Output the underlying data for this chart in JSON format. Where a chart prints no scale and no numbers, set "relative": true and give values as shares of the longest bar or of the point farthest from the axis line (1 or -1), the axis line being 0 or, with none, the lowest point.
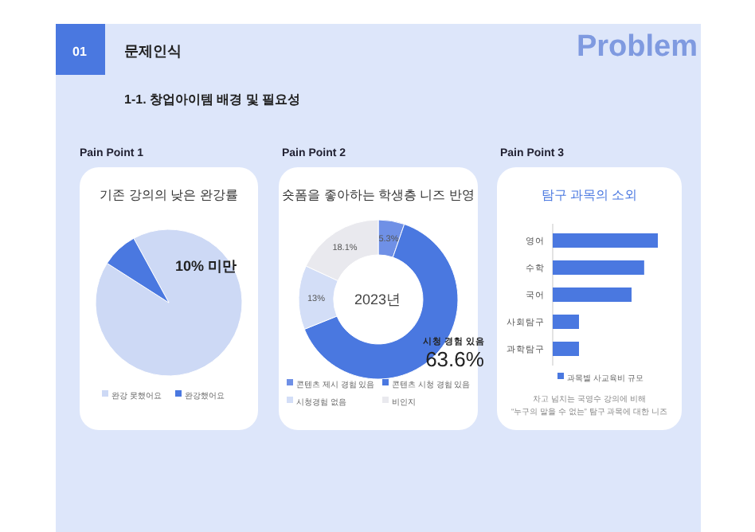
{
  "chart_data": [
    {
      "type": "pie",
      "title": "기존 강의의 낮은 완강률",
      "categories": [
        "완강 못했어요",
        "완강했어요"
      ],
      "values": [
        92,
        8
      ],
      "colors": [
        "#cdd9f5",
        "#4a78e0"
      ],
      "legend": "bottom",
      "annotations": [
        "01",
        "문제인식",
        "1-1. 창업아이템 배경 및 필요성",
        "Problem",
        "Pain Point 1",
        "10% 미만"
      ]
    },
    {
      "type": "donut",
      "title": "숏폼을 좋아하는 학생층 니즈 반영",
      "categories": [
        "콘텐츠 제시 경험 있음",
        "콘텐츠 시청 경험 있음",
        "시청경험 없음",
        "비인지"
      ],
      "values": [
        5.3,
        63.6,
        13,
        18.1
      ],
      "colors": [
        "#6f90e6",
        "#4a78e0",
        "#d3def7",
        "#e9e9ee"
      ],
      "value_labels": [
        "5.3%",
        "63.6%",
        "13%",
        "18.1%"
      ],
      "legend": "bottom",
      "annotations": [
        "Pain Point 2",
        "2023년",
        "시청 경험 있음"
      ]
    },
    {
      "type": "bar",
      "orientation": "horizontal",
      "relative": true,
      "title": "탐구 과목의 소외",
      "categories": [
        "영어",
        "수학",
        "국어",
        "사회탐구",
        "과학탐구"
      ],
      "legend": "bottom",
      "series": [
        {
          "name": "과목별 사교육비 규모",
          "color": "#4a78e0",
          "values": [
            1,
            0.87,
            0.75,
            0.25,
            0.25
          ]
        }
      ],
      "annotations": [
        "Pain Point 3",
        "차고 넘치는 국영수 강의에 비해",
        "“누구의 말을 수 없는” 탐구 과목에 대한 니즈"
      ]
    }
  ]
}
